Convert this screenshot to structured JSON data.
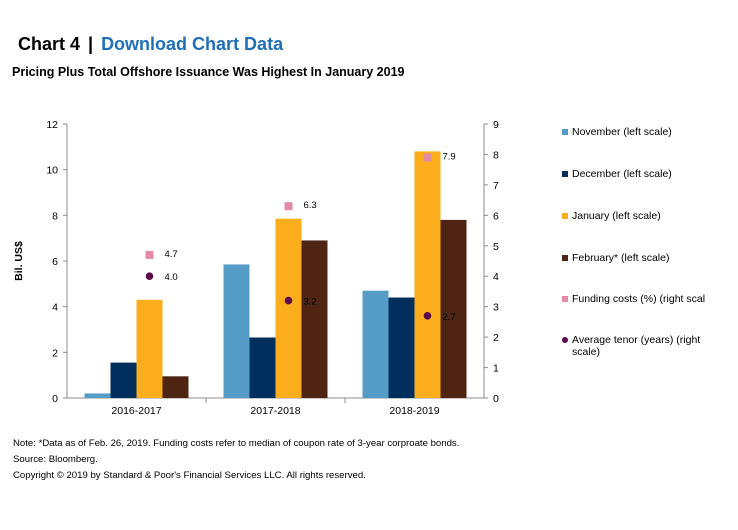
{
  "header": {
    "chart_label": "Chart 4",
    "separator": "|",
    "download_link": "Download Chart Data"
  },
  "chart_data": {
    "type": "bar",
    "title": "Pricing Plus Total Offshore Issuance Was Highest In January 2019",
    "ylabel": "Bil. US$",
    "categories": [
      "2016-2017",
      "2017-2018",
      "2018-2019"
    ],
    "ylim": [
      0,
      12
    ],
    "yticks": [
      0,
      2,
      4,
      6,
      8,
      10,
      12
    ],
    "y2lim": [
      0,
      9
    ],
    "y2ticks": [
      0,
      1,
      2,
      3,
      4,
      5,
      6,
      7,
      8,
      9
    ],
    "grid": false,
    "legend_position": "right",
    "series": [
      {
        "name": "November (left scale)",
        "type": "bar",
        "axis": "left",
        "color": "#559cc6",
        "values": [
          0.2,
          5.85,
          4.7
        ]
      },
      {
        "name": "December (left scale)",
        "type": "bar",
        "axis": "left",
        "color": "#002f5e",
        "values": [
          1.55,
          2.65,
          4.4
        ]
      },
      {
        "name": "January (left scale)",
        "type": "bar",
        "axis": "left",
        "color": "#fbad1b",
        "values": [
          4.3,
          7.85,
          10.8
        ]
      },
      {
        "name": "February* (left scale)",
        "type": "bar",
        "axis": "left",
        "color": "#4d2512",
        "values": [
          0.95,
          6.9,
          7.8
        ]
      },
      {
        "name": "Funding costs (%) (right scal",
        "type": "scatter",
        "marker": "square",
        "axis": "right",
        "color": "#e38aa6",
        "values": [
          4.7,
          6.3,
          7.9
        ],
        "labels": [
          "4.7",
          "6.3",
          "7.9"
        ]
      },
      {
        "name": "Average tenor (years) (right scale)",
        "type": "scatter",
        "marker": "circle",
        "axis": "right",
        "color": "#5c0a4c",
        "values": [
          4.0,
          3.2,
          2.7
        ],
        "labels": [
          "4.0",
          "3.2",
          "2.7"
        ]
      }
    ]
  },
  "notes": {
    "note": "Note: *Data as of Feb. 26, 2019. Funding costs refer to median of coupon rate of 3-year corproate bonds.",
    "source": "Source: Bloomberg.",
    "copyright": "Copyright © 2019 by Standard & Poor's Financial Services LLC. All rights reserved."
  }
}
